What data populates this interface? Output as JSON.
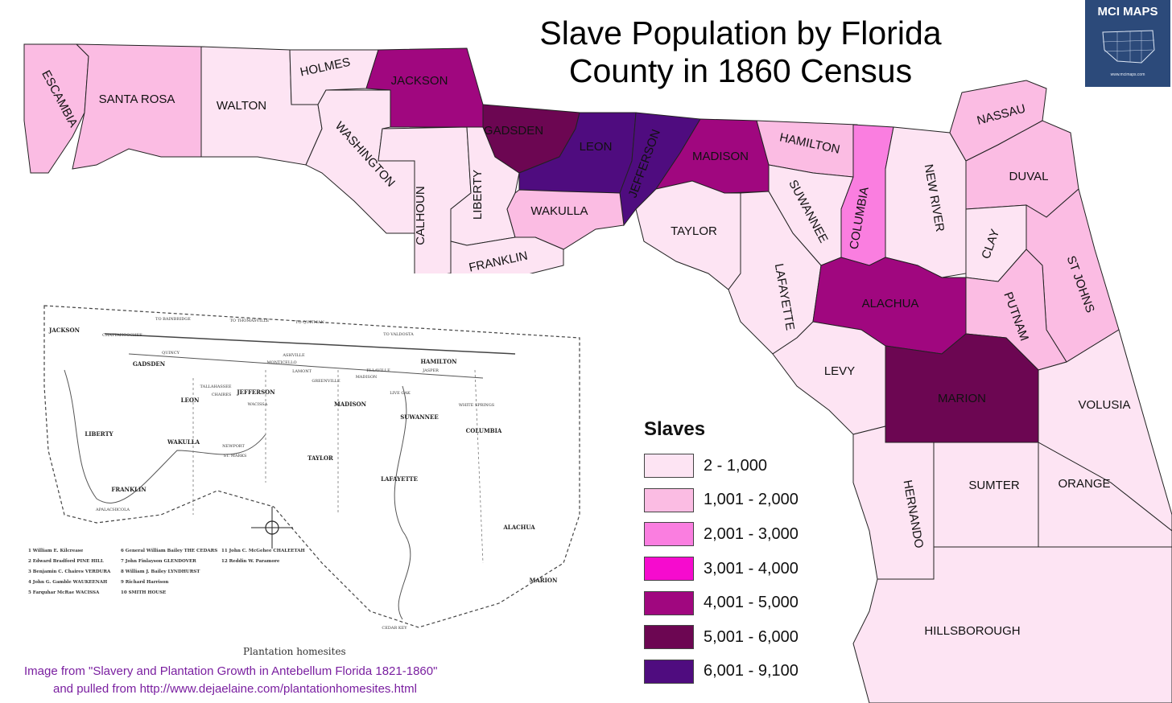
{
  "title_line1": "Slave Population by Florida",
  "title_line2": "County in 1860 Census",
  "badge": {
    "title": "MCI MAPS",
    "url": "www.mcimaps.com"
  },
  "colors": {
    "class1": "#fde4f3",
    "class2": "#fbbce3",
    "class3": "#fa7ee0",
    "class4": "#f60bce",
    "class5": "#a0077f",
    "class6": "#6c0652",
    "class7": "#4f0c7f",
    "border": "#222222",
    "badge": "#2c4a7a",
    "source_text": "#7a1fa0"
  },
  "legend": {
    "title": "Slaves",
    "items": [
      {
        "label": "2 - 1,000",
        "color": "#fde4f3"
      },
      {
        "label": "1,001 - 2,000",
        "color": "#fbbce3"
      },
      {
        "label": "2,001 - 3,000",
        "color": "#fa7ee0"
      },
      {
        "label": "3,001 - 4,000",
        "color": "#f60bce"
      },
      {
        "label": "4,001 - 5,000",
        "color": "#a0077f"
      },
      {
        "label": "5,001 - 6,000",
        "color": "#6c0652"
      },
      {
        "label": "6,001 - 9,100",
        "color": "#4f0c7f"
      }
    ]
  },
  "counties": [
    {
      "name": "ESCAMBIA",
      "class": 2
    },
    {
      "name": "SANTA ROSA",
      "class": 2
    },
    {
      "name": "WALTON",
      "class": 1
    },
    {
      "name": "HOLMES",
      "class": 1
    },
    {
      "name": "JACKSON",
      "class": 5
    },
    {
      "name": "WASHINGTON",
      "class": 1
    },
    {
      "name": "CALHOUN",
      "class": 1
    },
    {
      "name": "LIBERTY",
      "class": 1
    },
    {
      "name": "GADSDEN",
      "class": 6
    },
    {
      "name": "LEON",
      "class": 7
    },
    {
      "name": "JEFFERSON",
      "class": 7
    },
    {
      "name": "MADISON",
      "class": 5
    },
    {
      "name": "HAMILTON",
      "class": 2
    },
    {
      "name": "WAKULLA",
      "class": 2
    },
    {
      "name": "FRANKLIN",
      "class": 1
    },
    {
      "name": "TAYLOR",
      "class": 1
    },
    {
      "name": "SUWANNEE",
      "class": 1
    },
    {
      "name": "COLUMBIA",
      "class": 3
    },
    {
      "name": "NEW RIVER",
      "class": 1
    },
    {
      "name": "NASSAU",
      "class": 2
    },
    {
      "name": "DUVAL",
      "class": 2
    },
    {
      "name": "CLAY",
      "class": 1
    },
    {
      "name": "ST JOHNS",
      "class": 2
    },
    {
      "name": "PUTNAM",
      "class": 2
    },
    {
      "name": "LAFAYETTE",
      "class": 1
    },
    {
      "name": "ALACHUA",
      "class": 5
    },
    {
      "name": "LEVY",
      "class": 1
    },
    {
      "name": "MARION",
      "class": 6
    },
    {
      "name": "VOLUSIA",
      "class": 1
    },
    {
      "name": "HERNANDO",
      "class": 1
    },
    {
      "name": "SUMTER",
      "class": 1
    },
    {
      "name": "ORANGE",
      "class": 1
    },
    {
      "name": "HILLSBOROUGH",
      "class": 1
    }
  ],
  "inset": {
    "caption": "Plantation homesites",
    "county_labels": [
      "JACKSON",
      "GADSDEN",
      "LEON",
      "JEFFERSON",
      "MADISON",
      "HAMILTON",
      "LIBERTY",
      "WAKULLA",
      "TAYLOR",
      "SUWANNEE",
      "COLUMBIA",
      "FRANKLIN",
      "LAFAYETTE",
      "ALACHUA",
      "MARION"
    ],
    "towns": [
      "TO BAINBRIDGE",
      "TO THOMASVILLE",
      "TO QUITMAN",
      "TO VALDOSTA",
      "CHATTAHOOCHEE",
      "QUINCY",
      "TALLAHASSEE",
      "MONTICELLO",
      "MADISON",
      "LIVE OAK",
      "ST. MARKS",
      "NEWPORT",
      "APALACHICOLA",
      "CEDAR KEY",
      "WHITE SPRINGS",
      "WACISSA",
      "JASPER",
      "GREENVILLE",
      "ASHVILLE",
      "ELLAVILLE",
      "LAMONT",
      "CHAIRES"
    ],
    "legend_items": [
      "1  William E. Kilcrease",
      "2  Edward Bradford PINE HILL",
      "3  Benjamin C. Chaires VERDURA",
      "4  John G. Gamble WAUKEENAH",
      "5  Farquhar McRae WACISSA",
      "6  General William Bailey THE CEDARS",
      "7  John Finlayson GLENDOVER",
      "8  William J. Bailey LYNDHURST",
      "9  Richard Harrison",
      "10  SMITH HOUSE",
      "11  John C. McGehee CHALEETAH",
      "12  Reddin W. Paramore"
    ]
  },
  "source_line1": "Image from \"Slavery and Plantation Growth in Antebellum Florida 1821-1860\"",
  "source_line2": "and pulled from http://www.dejaelaine.com/plantationhomesites.html"
}
